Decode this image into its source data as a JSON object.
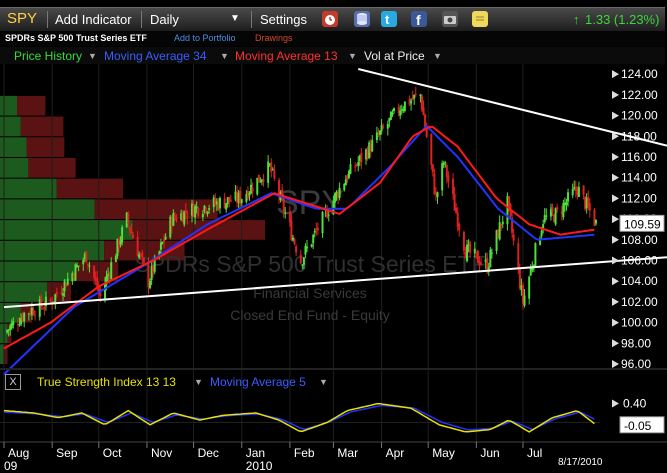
{
  "toolbar": {
    "symbol": "SPY",
    "add_indicator": "Add Indicator",
    "interval": "Daily",
    "settings": "Settings",
    "change": "1.33 (1.23%)",
    "icons": [
      "alarm-clock-icon",
      "database-icon",
      "twitter-icon",
      "facebook-icon",
      "camera-icon",
      "sticky-note-icon"
    ]
  },
  "subbar": {
    "name": "SPDRs S&P 500 Trust Series ETF",
    "add_portfolio": "Add to Portfolio",
    "drawings": "Drawings"
  },
  "legend": {
    "price_history": "Price History",
    "ma34": "Moving Average 34",
    "ma13": "Moving Average 13",
    "vol_at_price": "Vol at Price"
  },
  "watermark": {
    "symbol": "SPY",
    "name": "SPDRs S&P 500 Trust Series ETF",
    "sector": "Financial Services",
    "type": "Closed End Fund - Equity"
  },
  "indicator": {
    "close_label": "X",
    "tsi": "True Strength Index 13 13",
    "ma5": "Moving Average 5"
  },
  "colors": {
    "up": "#4de03a",
    "down": "#e02020",
    "ma34": "#2233ff",
    "ma13": "#ff1a1a",
    "tsi": "#e8e000",
    "trendline": "#ffffff",
    "green_text": "#3ad83a",
    "blue_text": "#3b5cff",
    "red_text": "#ff3030"
  },
  "chart_data": {
    "type": "candlestick",
    "ylim": [
      96,
      124.5
    ],
    "y_ticks": [
      "124.00",
      "122.00",
      "120.00",
      "118.00",
      "116.00",
      "114.00",
      "112.00",
      "110.00",
      "108.00",
      "106.00",
      "104.00",
      "102.00",
      "100.00",
      "98.00",
      "96.00"
    ],
    "last_price": "109.59",
    "x_tick_labels": [
      "Aug",
      "Sep",
      "Oct",
      "Nov",
      "Dec",
      "Jan",
      "Feb",
      "Mar",
      "Apr",
      "May",
      "Jun",
      "Jul"
    ],
    "x_sub_labels": [
      "09",
      "2010"
    ],
    "date_label": "8/17/2010",
    "x_range": [
      "2009-08-01",
      "2010-08-17"
    ],
    "price_waypoints": [
      [
        "2009-08-01",
        99.0
      ],
      [
        "2009-08-15",
        101.0
      ],
      [
        "2009-08-31",
        102.0
      ],
      [
        "2009-09-10",
        104.0
      ],
      [
        "2009-09-23",
        106.5
      ],
      [
        "2009-10-02",
        102.5
      ],
      [
        "2009-10-19",
        110.0
      ],
      [
        "2009-11-02",
        104.0
      ],
      [
        "2009-11-17",
        110.0
      ],
      [
        "2009-12-01",
        111.0
      ],
      [
        "2009-12-15",
        111.5
      ],
      [
        "2009-12-31",
        112.0
      ],
      [
        "2010-01-19",
        115.0
      ],
      [
        "2010-02-08",
        106.0
      ],
      [
        "2010-02-24",
        110.5
      ],
      [
        "2010-03-09",
        114.0
      ],
      [
        "2010-03-25",
        117.0
      ],
      [
        "2010-04-14",
        121.0
      ],
      [
        "2010-04-26",
        122.0
      ],
      [
        "2010-05-06",
        112.0
      ],
      [
        "2010-05-11",
        115.5
      ],
      [
        "2010-05-25",
        107.0
      ],
      [
        "2010-06-08",
        105.5
      ],
      [
        "2010-06-21",
        111.5
      ],
      [
        "2010-07-01",
        102.0
      ],
      [
        "2010-07-14",
        110.0
      ],
      [
        "2010-07-23",
        110.5
      ],
      [
        "2010-08-05",
        113.0
      ],
      [
        "2010-08-17",
        109.59
      ]
    ],
    "ma34_waypoints": [
      [
        "2009-08-01",
        95.0
      ],
      [
        "2009-09-15",
        101.5
      ],
      [
        "2009-10-30",
        105.5
      ],
      [
        "2009-12-10",
        109.5
      ],
      [
        "2010-01-20",
        112.5
      ],
      [
        "2010-02-18",
        111.0
      ],
      [
        "2010-03-10",
        111.0
      ],
      [
        "2010-04-06",
        115.0
      ],
      [
        "2010-04-30",
        119.0
      ],
      [
        "2010-05-20",
        116.0
      ],
      [
        "2010-06-15",
        111.0
      ],
      [
        "2010-07-10",
        108.0
      ],
      [
        "2010-08-17",
        108.5
      ]
    ],
    "ma13_waypoints": [
      [
        "2009-08-01",
        97.5
      ],
      [
        "2009-08-31",
        100.0
      ],
      [
        "2009-10-01",
        103.5
      ],
      [
        "2009-11-05",
        106.0
      ],
      [
        "2009-12-10",
        109.0
      ],
      [
        "2010-01-22",
        112.5
      ],
      [
        "2010-02-12",
        111.5
      ],
      [
        "2010-03-05",
        110.5
      ],
      [
        "2010-03-31",
        113.5
      ],
      [
        "2010-04-21",
        118.0
      ],
      [
        "2010-05-03",
        119.0
      ],
      [
        "2010-05-20",
        117.0
      ],
      [
        "2010-06-14",
        112.0
      ],
      [
        "2010-07-05",
        109.5
      ],
      [
        "2010-07-25",
        108.5
      ],
      [
        "2010-08-17",
        109.0
      ]
    ],
    "upper_trendline": [
      [
        "2010-03-17",
        124.5
      ],
      [
        "2010-08-17",
        118.8
      ]
    ],
    "lower_trendline": [
      [
        "2009-08-01",
        101.5
      ],
      [
        "2010-08-17",
        105.8
      ]
    ],
    "vol_at_price": [
      {
        "low": 96,
        "high": 98,
        "up": 5,
        "down": 3
      },
      {
        "low": 98,
        "high": 100,
        "up": 8,
        "down": 4
      },
      {
        "low": 100,
        "high": 102,
        "up": 22,
        "down": 12
      },
      {
        "low": 102,
        "high": 104,
        "up": 50,
        "down": 25
      },
      {
        "low": 104,
        "high": 106,
        "up": 80,
        "down": 45
      },
      {
        "low": 106,
        "high": 108,
        "up": 110,
        "down": 85
      },
      {
        "low": 108,
        "high": 110,
        "up": 140,
        "down": 140
      },
      {
        "low": 110,
        "high": 112,
        "up": 100,
        "down": 130
      },
      {
        "low": 112,
        "high": 114,
        "up": 60,
        "down": 70
      },
      {
        "low": 114,
        "high": 116,
        "up": 30,
        "down": 50
      },
      {
        "low": 116,
        "high": 118,
        "up": 28,
        "down": 40
      },
      {
        "low": 118,
        "high": 120,
        "up": 22,
        "down": 45
      },
      {
        "low": 120,
        "high": 122,
        "up": 18,
        "down": 30
      }
    ],
    "tsi_ylim": [
      -0.35,
      0.6
    ],
    "tsi_ticks": [
      "0.40"
    ],
    "tsi_last": "-0.05",
    "tsi_waypoints": [
      [
        "2009-08-01",
        0.25
      ],
      [
        "2009-08-20",
        0.2
      ],
      [
        "2009-09-05",
        0.1
      ],
      [
        "2009-09-20",
        0.2
      ],
      [
        "2009-10-05",
        -0.05
      ],
      [
        "2009-10-20",
        0.25
      ],
      [
        "2009-11-03",
        -0.05
      ],
      [
        "2009-11-18",
        0.2
      ],
      [
        "2009-12-05",
        0.05
      ],
      [
        "2009-12-20",
        0.15
      ],
      [
        "2010-01-10",
        0.2
      ],
      [
        "2010-01-25",
        0.05
      ],
      [
        "2010-02-08",
        -0.2
      ],
      [
        "2010-02-25",
        0.0
      ],
      [
        "2010-03-10",
        0.25
      ],
      [
        "2010-03-30",
        0.4
      ],
      [
        "2010-04-20",
        0.3
      ],
      [
        "2010-05-08",
        -0.05
      ],
      [
        "2010-05-25",
        -0.2
      ],
      [
        "2010-06-10",
        -0.15
      ],
      [
        "2010-06-22",
        0.05
      ],
      [
        "2010-07-05",
        -0.2
      ],
      [
        "2010-07-20",
        0.1
      ],
      [
        "2010-08-05",
        0.25
      ],
      [
        "2010-08-17",
        -0.05
      ]
    ],
    "tsi_ma_waypoints": [
      [
        "2009-08-01",
        0.22
      ],
      [
        "2009-08-22",
        0.18
      ],
      [
        "2009-09-08",
        0.12
      ],
      [
        "2009-09-22",
        0.18
      ],
      [
        "2009-10-07",
        0.0
      ],
      [
        "2009-10-22",
        0.2
      ],
      [
        "2009-11-05",
        0.0
      ],
      [
        "2009-11-20",
        0.16
      ],
      [
        "2009-12-07",
        0.07
      ],
      [
        "2009-12-22",
        0.14
      ],
      [
        "2010-01-12",
        0.18
      ],
      [
        "2010-01-27",
        0.06
      ],
      [
        "2010-02-10",
        -0.15
      ],
      [
        "2010-02-27",
        0.02
      ],
      [
        "2010-03-12",
        0.22
      ],
      [
        "2010-04-01",
        0.36
      ],
      [
        "2010-04-22",
        0.3
      ],
      [
        "2010-05-10",
        0.0
      ],
      [
        "2010-05-27",
        -0.16
      ],
      [
        "2010-06-12",
        -0.12
      ],
      [
        "2010-06-24",
        0.03
      ],
      [
        "2010-07-07",
        -0.15
      ],
      [
        "2010-07-22",
        0.08
      ],
      [
        "2010-08-07",
        0.22
      ],
      [
        "2010-08-17",
        0.05
      ]
    ]
  }
}
